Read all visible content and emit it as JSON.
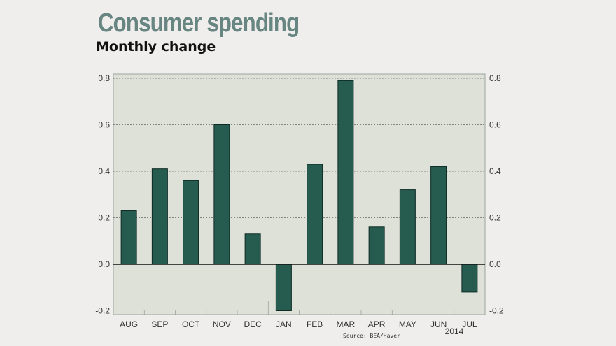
{
  "chart_data": {
    "type": "bar",
    "title": "Consumer spending",
    "subtitle": "Monthly change",
    "categories": [
      "AUG",
      "SEP",
      "OCT",
      "NOV",
      "DEC",
      "JAN",
      "FEB",
      "MAR",
      "APR",
      "MAY",
      "JUN",
      "JUL"
    ],
    "values": [
      0.23,
      0.41,
      0.36,
      0.6,
      0.13,
      -0.2,
      0.43,
      0.79,
      0.16,
      0.32,
      0.42,
      -0.12
    ],
    "year_label": "2014",
    "source": "Source: BEA/Haver",
    "ylim": [
      -0.2,
      0.8
    ],
    "yticks": [
      "0.8",
      "0.6",
      "0.4",
      "0.2",
      "0.0",
      "-0.2"
    ],
    "ytick_values": [
      0.8,
      0.6,
      0.4,
      0.2,
      0.0,
      -0.2
    ],
    "grid": true,
    "colors": {
      "bar": "#265c50",
      "plot_bg": "#dde1d7",
      "title": "#678581"
    }
  }
}
